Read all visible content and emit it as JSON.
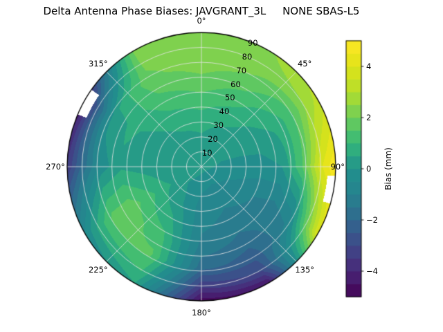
{
  "chart_data": {
    "type": "heatmap",
    "projection": "polar",
    "title": "Delta Antenna Phase Biases: JAVGRANT_3L     NONE SBAS-L5",
    "grid_on": true,
    "azimuth_ticks_deg": [
      0,
      45,
      90,
      135,
      180,
      225,
      270,
      315
    ],
    "azimuth_tick_labels": [
      "0°",
      "45°",
      "90°",
      "135°",
      "180°",
      "225°",
      "270°",
      "315°"
    ],
    "radial_tick_values": [
      10,
      20,
      30,
      40,
      50,
      60,
      70,
      80,
      90
    ],
    "radial_tick_labels": [
      "10",
      "20",
      "30",
      "40",
      "50",
      "60",
      "70",
      "80",
      "90"
    ],
    "contour_interval_mm": 0.5,
    "colorbar": {
      "label": "Bias (mm)",
      "ticks": [
        4,
        2,
        0,
        -2,
        -4
      ],
      "tick_labels": [
        "4",
        "2",
        "0",
        "−2",
        "−4"
      ],
      "vmin": -5,
      "vmax": 5,
      "colormap": "viridis",
      "viridis_stops": [
        [
          0.0,
          "#440154"
        ],
        [
          0.1,
          "#482878"
        ],
        [
          0.2,
          "#3e4989"
        ],
        [
          0.3,
          "#31688e"
        ],
        [
          0.4,
          "#26828e"
        ],
        [
          0.5,
          "#21918c"
        ],
        [
          0.6,
          "#35b779"
        ],
        [
          0.7,
          "#6dcd59"
        ],
        [
          0.8,
          "#b4de2c"
        ],
        [
          0.9,
          "#dfe318"
        ],
        [
          1.0,
          "#fde725"
        ]
      ]
    },
    "grid": {
      "azimuth_deg": [
        0,
        30,
        60,
        90,
        120,
        150,
        180,
        210,
        240,
        270,
        300,
        330,
        360
      ],
      "radius_frac": [
        0,
        0.15,
        0.3,
        0.45,
        0.6,
        0.75,
        0.9,
        1.0
      ],
      "bias_mm": [
        [
          0.2,
          0.2,
          0.2,
          0.2,
          0.2,
          0.2,
          0.2,
          0.2,
          0.2,
          0.2,
          0.2,
          0.2,
          0.2
        ],
        [
          0.3,
          0.2,
          0.1,
          -0.1,
          -0.4,
          -0.5,
          -0.4,
          -0.1,
          0.2,
          0.1,
          0.1,
          0.2,
          0.3
        ],
        [
          0.6,
          0.4,
          0.2,
          -0.2,
          -0.7,
          -0.9,
          -0.7,
          0.1,
          0.6,
          0.2,
          0.2,
          0.5,
          0.6
        ],
        [
          1.1,
          0.8,
          0.3,
          -0.2,
          -1.0,
          -1.2,
          -0.9,
          0.6,
          1.2,
          0.3,
          0.4,
          0.9,
          1.1
        ],
        [
          1.7,
          1.3,
          0.6,
          0.0,
          -1.2,
          -1.6,
          -1.2,
          1.2,
          1.8,
          0.4,
          0.6,
          1.4,
          1.7
        ],
        [
          2.2,
          1.9,
          1.2,
          1.5,
          -0.8,
          -2.2,
          -1.8,
          1.6,
          1.7,
          -0.3,
          0.2,
          1.9,
          2.2
        ],
        [
          2.4,
          2.3,
          2.6,
          4.0,
          2.0,
          -3.0,
          -3.5,
          1.0,
          0.5,
          -2.0,
          -2.5,
          2.1,
          2.4
        ],
        [
          2.5,
          2.4,
          3.2,
          5.0,
          4.0,
          -4.5,
          -4.8,
          0.5,
          -0.5,
          -3.5,
          -4.5,
          2.2,
          2.5
        ]
      ]
    },
    "masked_sectors": [
      {
        "az_start": 94,
        "az_end": 106,
        "r_start": 0.94,
        "r_end": 1.0
      },
      {
        "az_start": 293,
        "az_end": 305,
        "r_start": 0.93,
        "r_end": 1.0
      }
    ]
  }
}
